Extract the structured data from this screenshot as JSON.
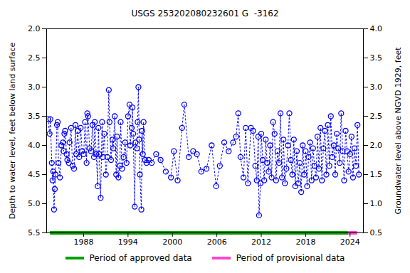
{
  "chart_data": {
    "type": "line",
    "title": "USGS 253202080232601 G  -3162",
    "y_label": "Depth to water level, feet below land surface",
    "y2_label": "Groundwater level above NGVD 1929, feet",
    "xlim": [
      1983.0,
      2025.8
    ],
    "xticks": [
      1988,
      1994,
      2000,
      2006,
      2012,
      2018,
      2024
    ],
    "ylim": [
      5.5,
      2.0
    ],
    "yticks": [
      {
        "value": 2.0,
        "label": "2.0"
      },
      2.5,
      {
        "value": 3.0,
        "label": "3.0"
      },
      3.5,
      {
        "value": 4.0,
        "label": "4.0"
      },
      4.5,
      {
        "value": 5.0,
        "label": "5.0"
      },
      5.5
    ],
    "y2lim": [
      0.5,
      4.0
    ],
    "y2ticks": [
      {
        "value": 4.0,
        "label": "4.0"
      },
      3.5,
      {
        "value": 3.0,
        "label": "3.0"
      },
      2.5,
      {
        "value": 2.0,
        "label": "2.0"
      },
      1.5,
      {
        "value": 1.0,
        "label": "1.0"
      },
      0.5
    ],
    "grid": false,
    "x": [
      1983.2,
      1983.4,
      1983.5,
      1983.7,
      1983.8,
      1983.9,
      1984.0,
      1984.1,
      1984.2,
      1984.4,
      1984.5,
      1984.6,
      1984.8,
      1985.0,
      1985.2,
      1985.3,
      1985.4,
      1985.5,
      1985.7,
      1985.8,
      1986.0,
      1986.1,
      1986.3,
      1986.5,
      1986.7,
      1986.9,
      1987.0,
      1987.2,
      1987.4,
      1987.6,
      1987.8,
      1988.0,
      1988.2,
      1988.4,
      1988.5,
      1988.6,
      1988.8,
      1989.0,
      1989.2,
      1989.4,
      1989.5,
      1989.7,
      1989.9,
      1990.0,
      1990.1,
      1990.3,
      1990.5,
      1990.6,
      1990.8,
      1991.0,
      1991.2,
      1991.4,
      1991.5,
      1991.7,
      1991.9,
      1992.0,
      1992.2,
      1992.4,
      1992.5,
      1992.7,
      1992.9,
      1993.0,
      1993.2,
      1993.4,
      1993.6,
      1993.8,
      1994.0,
      1994.2,
      1994.3,
      1994.5,
      1994.6,
      1994.7,
      1994.9,
      1995.0,
      1995.2,
      1995.3,
      1995.4,
      1995.5,
      1995.6,
      1995.8,
      1995.9,
      1996.0,
      1996.1,
      1996.3,
      1996.5,
      1996.8,
      1997.2,
      1997.8,
      1998.4,
      1999.1,
      1999.8,
      2000.2,
      2000.7,
      2001.3,
      2001.6,
      2002.2,
      2002.8,
      2003.3,
      2003.9,
      2004.6,
      2005.3,
      2005.9,
      2006.4,
      2007.0,
      2007.6,
      2008.2,
      2008.6,
      2008.9,
      2009.2,
      2009.6,
      2009.9,
      2010.2,
      2010.6,
      2010.9,
      2011.2,
      2011.4,
      2011.6,
      2011.7,
      2011.9,
      2012.0,
      2012.2,
      2012.4,
      2012.6,
      2012.8,
      2013.0,
      2013.2,
      2013.4,
      2013.6,
      2013.8,
      2014.0,
      2014.2,
      2014.4,
      2014.6,
      2014.8,
      2015.0,
      2015.2,
      2015.4,
      2015.6,
      2015.8,
      2016.0,
      2016.2,
      2016.4,
      2016.6,
      2016.8,
      2017.0,
      2017.2,
      2017.4,
      2017.6,
      2017.8,
      2018.0,
      2018.2,
      2018.4,
      2018.6,
      2018.8,
      2019.0,
      2019.2,
      2019.4,
      2019.6,
      2019.8,
      2020.0,
      2020.2,
      2020.4,
      2020.6,
      2020.8,
      2021.0,
      2021.2,
      2021.4,
      2021.6,
      2021.8,
      2022.0,
      2022.2,
      2022.4,
      2022.6,
      2022.8,
      2023.0,
      2023.2,
      2023.4,
      2023.6,
      2023.8,
      2024.0,
      2024.2,
      2024.4,
      2024.6,
      2024.8,
      2025.0,
      2025.2
    ],
    "series": [
      {
        "name": "Depth to water level",
        "color": "#0000ff",
        "marker": "circle",
        "line_style": "dotted",
        "values": [
          3.55,
          3.8,
          3.55,
          4.3,
          4.6,
          4.45,
          5.1,
          4.75,
          4.5,
          3.65,
          3.6,
          4.3,
          4.55,
          4.0,
          3.95,
          4.1,
          3.8,
          3.75,
          4.15,
          4.25,
          4.3,
          3.95,
          3.7,
          4.35,
          4.4,
          3.65,
          4.15,
          3.75,
          4.2,
          3.7,
          4.1,
          4.15,
          3.6,
          4.3,
          3.45,
          3.5,
          4.05,
          4.1,
          3.65,
          4.2,
          3.6,
          4.15,
          4.7,
          3.7,
          4.15,
          4.9,
          3.6,
          4.2,
          3.8,
          4.5,
          4.2,
          3.05,
          3.6,
          4.25,
          3.9,
          4.05,
          3.5,
          4.5,
          3.85,
          4.55,
          4.35,
          3.6,
          4.4,
          4.2,
          3.95,
          4.3,
          3.5,
          3.3,
          4.0,
          3.7,
          3.35,
          3.8,
          5.05,
          3.95,
          4.05,
          3.6,
          3.0,
          3.9,
          4.5,
          5.1,
          3.75,
          4.15,
          3.6,
          4.25,
          4.3,
          4.25,
          4.3,
          4.15,
          4.25,
          4.45,
          4.55,
          4.1,
          4.6,
          3.7,
          3.3,
          4.2,
          4.1,
          4.15,
          4.45,
          4.4,
          4.0,
          4.7,
          4.35,
          3.95,
          4.1,
          3.95,
          3.85,
          3.45,
          4.2,
          4.55,
          3.7,
          4.65,
          3.7,
          3.75,
          4.35,
          4.6,
          3.85,
          5.2,
          4.65,
          3.8,
          4.25,
          4.6,
          3.9,
          4.3,
          4.45,
          4.0,
          4.55,
          3.6,
          3.8,
          4.6,
          4.1,
          4.3,
          3.45,
          4.55,
          3.9,
          4.65,
          4.4,
          4.0,
          3.45,
          4.25,
          4.5,
          3.9,
          4.7,
          4.1,
          4.65,
          4.3,
          4.8,
          4.0,
          4.5,
          4.1,
          4.7,
          4.2,
          3.95,
          4.6,
          4.05,
          4.35,
          4.55,
          3.85,
          4.4,
          3.7,
          4.6,
          4.05,
          3.75,
          4.5,
          3.65,
          4.35,
          3.5,
          4.2,
          4.0,
          4.5,
          3.8,
          4.05,
          4.3,
          3.45,
          4.1,
          4.6,
          3.75,
          4.1,
          4.45,
          4.15,
          3.85,
          4.55,
          4.05,
          4.35,
          3.65,
          4.5
        ]
      }
    ],
    "periods": [
      {
        "name": "Period of approved data",
        "color": "#00a000",
        "start": 1983.5,
        "end": 2023.8
      },
      {
        "name": "Period of provisional data",
        "color": "#ff44cc",
        "start": 2023.8,
        "end": 2025.0
      }
    ]
  }
}
